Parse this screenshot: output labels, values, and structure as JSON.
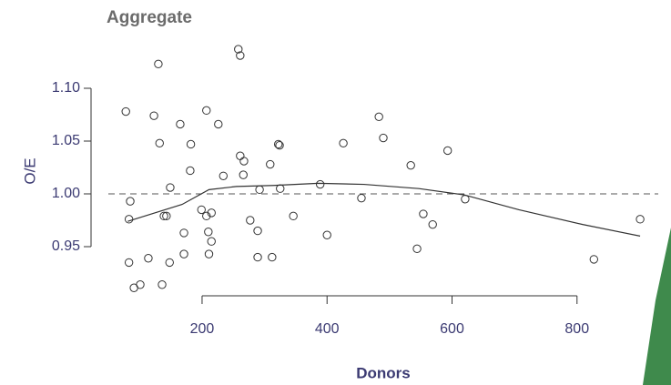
{
  "chart_data": {
    "type": "scatter",
    "title": "Aggregate",
    "xlabel": "Donors",
    "ylabel": "O/E",
    "xlim": [
      50,
      930
    ],
    "ylim": [
      0.9,
      1.14
    ],
    "xticks": [
      200,
      400,
      600,
      800
    ],
    "yticks": [
      {
        "value": 0.95,
        "label": "0.95"
      },
      {
        "value": 1.0,
        "label": "1.00"
      },
      {
        "value": 1.05,
        "label": "1.05"
      },
      {
        "value": 1.1,
        "label": "1.10"
      }
    ],
    "reference_line": 1.0,
    "series": [
      {
        "name": "points",
        "color": "#333333",
        "x": [
          78,
          85,
          83,
          83,
          91,
          101,
          114,
          123,
          130,
          132,
          136,
          139,
          143,
          148,
          149,
          165,
          171,
          171,
          181,
          182,
          199,
          207,
          207,
          210,
          211,
          215,
          215,
          226,
          234,
          258,
          261,
          261,
          267,
          266,
          277,
          289,
          289,
          292,
          309,
          312,
          322,
          324,
          325,
          346,
          389,
          400,
          426,
          455,
          483,
          490,
          534,
          544,
          554,
          569,
          593,
          621,
          827,
          901
        ],
        "values": [
          1.078,
          0.993,
          0.976,
          0.935,
          0.911,
          0.914,
          0.939,
          1.074,
          1.123,
          1.048,
          0.914,
          0.979,
          0.979,
          0.935,
          1.006,
          1.066,
          0.963,
          0.943,
          1.022,
          1.047,
          0.985,
          1.079,
          0.979,
          0.964,
          0.943,
          0.982,
          0.955,
          1.066,
          1.017,
          1.137,
          1.131,
          1.036,
          1.031,
          1.018,
          0.975,
          0.965,
          0.94,
          1.004,
          1.028,
          0.94,
          1.047,
          1.046,
          1.005,
          0.979,
          1.009,
          0.961,
          1.048,
          0.996,
          1.073,
          1.053,
          1.027,
          0.948,
          0.981,
          0.971,
          1.041,
          0.995,
          0.938,
          0.976
        ]
      },
      {
        "name": "smooth",
        "color": "#333333",
        "x": [
          81,
          168,
          211,
          255,
          314,
          386,
          459,
          547,
          620,
          707,
          809,
          901
        ],
        "values": [
          0.974,
          0.99,
          1.004,
          1.007,
          1.008,
          1.01,
          1.009,
          1.005,
          0.999,
          0.985,
          0.971,
          0.96
        ]
      }
    ]
  }
}
